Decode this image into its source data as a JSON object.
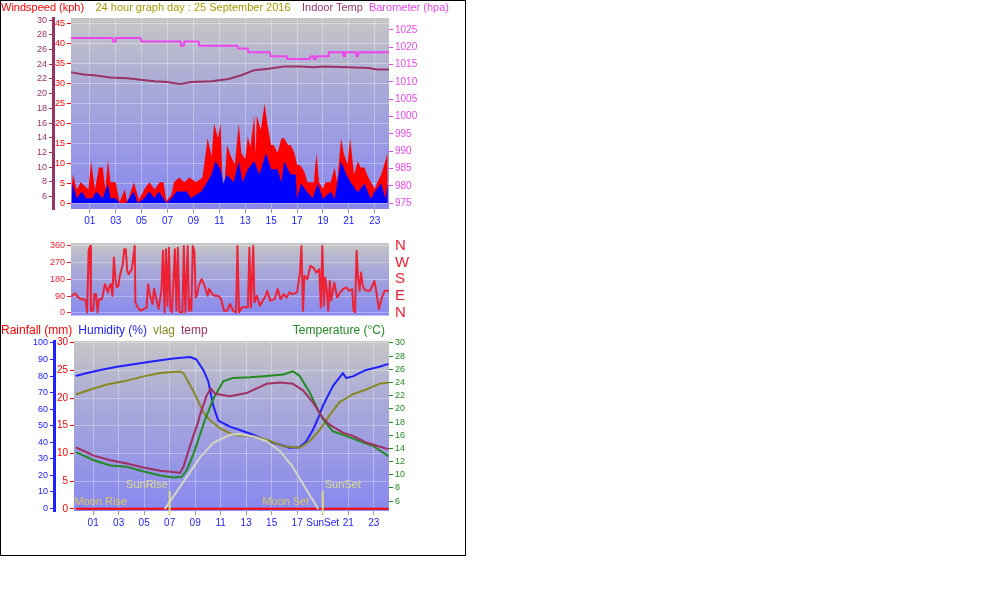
{
  "chart_data": [
    {
      "type": "line",
      "title": "24 hour graph day : 25 September 2016",
      "ylabel": "Windspeed (kph)",
      "y2label": "Barometer (hpa)",
      "y3label": "Indoor Temp",
      "xlim": [
        -0.45,
        24.1
      ],
      "xticks": [
        {
          "value": 1,
          "label": "01"
        },
        {
          "value": 3,
          "label": "03"
        },
        {
          "value": 5,
          "label": "05"
        },
        {
          "value": 7,
          "label": "07"
        },
        {
          "value": 9,
          "label": "09"
        },
        {
          "value": 11,
          "label": "11"
        },
        {
          "value": 13,
          "label": "13"
        },
        {
          "value": 15,
          "label": "15"
        },
        {
          "value": 17,
          "label": "17"
        },
        {
          "value": 19,
          "label": "19"
        },
        {
          "value": 21,
          "label": "21"
        },
        {
          "value": 23,
          "label": "23"
        }
      ],
      "ylim": [
        -1.5,
        46.5
      ],
      "yticks": [
        0,
        5,
        10,
        15,
        20,
        25,
        30,
        35,
        40,
        45
      ],
      "y2lim": [
        973.3,
        1028.4
      ],
      "y2ticks": [
        975,
        980,
        985,
        990,
        995,
        1000,
        1005,
        1010,
        1015,
        1020,
        1025
      ],
      "y3lim": [
        4.3,
        30.3
      ],
      "y3ticks": [
        6,
        8,
        10,
        12,
        14,
        16,
        18,
        20,
        22,
        24,
        26,
        28,
        30
      ],
      "grid": true,
      "series": [
        {
          "type": "area",
          "color": "#ff0000",
          "x": [
            -0.4,
            -0.3,
            0,
            0.3,
            0.9,
            1.1,
            1.4,
            1.7,
            2.0,
            2.2,
            2.4,
            2.6,
            3.0,
            3.3,
            3.7,
            3.9,
            4.4,
            4.8,
            5.2,
            5.6,
            6.0,
            6.4,
            6.7,
            6.9,
            7.3,
            7.5,
            7.9,
            8.3,
            8.7,
            9.2,
            9.7,
            10.1,
            10.4,
            10.6,
            10.9,
            11.1,
            11.3,
            11.6,
            11.9,
            12.2,
            12.5,
            12.7,
            13.0,
            13.2,
            13.4,
            13.7,
            13.8,
            13.9,
            14.2,
            14.5,
            14.7,
            15.0,
            15.2,
            15.5,
            15.8,
            16.0,
            16.3,
            16.5,
            16.8,
            17.0,
            17.3,
            17.6,
            17.8,
            18.3,
            18.5,
            18.7,
            19.0,
            19.2,
            19.6,
            19.9,
            20.1,
            20.4,
            20.6,
            20.9,
            21.1,
            21.4,
            21.7,
            21.9,
            22.2,
            22.4,
            22.7,
            23.0,
            23.2,
            23.5,
            23.7,
            24.0
          ],
          "values": [
            3.4,
            7.2,
            3.4,
            5.2,
            3.4,
            10.5,
            3.4,
            8.9,
            8.9,
            3.4,
            10.8,
            5.2,
            5.2,
            0.2,
            3.4,
            0.2,
            5.2,
            0.8,
            3.4,
            5.2,
            3.4,
            5.2,
            5.2,
            0.5,
            2.0,
            5.2,
            6.4,
            5.2,
            6.4,
            5.2,
            6.4,
            16.3,
            11.7,
            20,
            16.3,
            20,
            0,
            14.6,
            11.7,
            9.7,
            20,
            12.6,
            11.0,
            16.7,
            14.0,
            22,
            12,
            22,
            18.3,
            25,
            20,
            14.6,
            14.6,
            12.6,
            16.3,
            16.3,
            14.6,
            14.6,
            12.6,
            9.7,
            9.3,
            7.6,
            5.2,
            5.2,
            12.6,
            5.2,
            3.6,
            5.2,
            5.2,
            8.9,
            5.2,
            16.3,
            12.6,
            9.7,
            16.3,
            7.2,
            10.5,
            8.9,
            8.9,
            7.2,
            5.2,
            3.6,
            5.2,
            7.2,
            9.3,
            12.6
          ]
        },
        {
          "type": "area",
          "color": "#0000ff",
          "x": [
            -0.4,
            -0.3,
            0,
            0.4,
            0.7,
            1.2,
            1.5,
            2.0,
            2.4,
            2.6,
            3.0,
            3.3,
            3.8,
            4.4,
            4.7,
            5.2,
            5.6,
            6.0,
            6.3,
            6.7,
            6.9,
            7.3,
            7.7,
            8.5,
            8.8,
            9.6,
            10.0,
            10.4,
            10.7,
            11.1,
            11.3,
            11.6,
            12.1,
            12.5,
            12.8,
            13.2,
            13.7,
            14.1,
            14.6,
            15.0,
            15.5,
            15.8,
            16.0,
            16.5,
            16.9,
            17.0,
            17.3,
            17.8,
            18.2,
            18.6,
            19.0,
            19.6,
            19.9,
            20.4,
            20.8,
            21.2,
            21.7,
            22.2,
            22.7,
            23.0,
            23.5,
            23.8,
            24.0
          ],
          "values": [
            1.2,
            4.9,
            1.2,
            2.9,
            1.2,
            1.2,
            2.9,
            1.2,
            4.9,
            1.2,
            1.2,
            0,
            0,
            2.9,
            0,
            1.2,
            2.9,
            1.2,
            2.9,
            1.2,
            0,
            1.2,
            2.9,
            2.9,
            1.2,
            2.9,
            4.9,
            7.2,
            10.5,
            8.5,
            4.9,
            7.2,
            5.2,
            10.5,
            5.2,
            8.5,
            10.5,
            7.2,
            12.6,
            8.5,
            8.5,
            5.2,
            10.5,
            7.2,
            7.2,
            1.1,
            4.9,
            2.7,
            1.2,
            4.9,
            1.1,
            2.9,
            1.1,
            10.5,
            7.2,
            4.9,
            2.7,
            4.9,
            1.1,
            2.9,
            4.9,
            1.2,
            4.9
          ]
        },
        {
          "color": "#ee44ee",
          "axis": "y2",
          "x": [
            -0.4,
            2.75,
            2.8,
            2.95,
            3.0,
            4.9,
            5.0,
            8.0,
            8.05,
            8.25,
            8.3,
            9.4,
            9.45,
            12.4,
            12.45,
            13.2,
            13.25,
            14.9,
            14.95,
            16.2,
            16.25,
            18.0,
            18.05,
            18.25,
            18.3,
            18.45,
            18.5,
            19.4,
            19.45,
            20.55,
            20.6,
            20.7,
            20.75,
            21.55,
            21.6,
            21.7,
            21.75,
            24.1
          ],
          "values": [
            1022.6,
            1022.6,
            1021.6,
            1021.6,
            1022.6,
            1022.6,
            1021.6,
            1021.6,
            1020.4,
            1020.4,
            1021.6,
            1021.6,
            1020.4,
            1020.4,
            1019.6,
            1019.6,
            1018.5,
            1018.5,
            1017.4,
            1017.4,
            1016.6,
            1016.6,
            1017.4,
            1017.4,
            1016.6,
            1016.6,
            1017.4,
            1017.4,
            1018.5,
            1018.5,
            1017.4,
            1017.4,
            1018.5,
            1018.5,
            1017.4,
            1017.4,
            1018.5,
            1018.5
          ]
        },
        {
          "color": "#993366",
          "axis": "y3",
          "x": [
            -0.4,
            0.5,
            1.3,
            2.6,
            3.9,
            4.9,
            6.0,
            7.0,
            8.0,
            8.8,
            10.4,
            11.7,
            12.7,
            13.7,
            14.8,
            16.0,
            17.3,
            18.3,
            19.1,
            20.9,
            22.5,
            23.2,
            24.1
          ],
          "values": [
            22.9,
            22.6,
            22.5,
            22.2,
            22.1,
            21.9,
            21.7,
            21.6,
            21.3,
            21.6,
            21.7,
            22.0,
            22.5,
            23.2,
            23.4,
            23.7,
            23.7,
            23.6,
            23.7,
            23.6,
            23.5,
            23.3,
            23.3
          ]
        }
      ]
    },
    {
      "type": "line",
      "xlim": [
        -0.45,
        24.1
      ],
      "tick_labels": "y",
      "ylim": [
        -14,
        374
      ],
      "yticks": [
        0,
        90,
        180,
        270,
        360
      ],
      "grid": true,
      "annotations": [
        "N",
        "W",
        "S",
        "E",
        "N"
      ],
      "series": [
        {
          "color": "#ee2233",
          "x": [
            -0.36,
            -0.13,
            0.1,
            0.33,
            0.56,
            0.68,
            0.79,
            0.91,
            1.02,
            1.09,
            1.25,
            1.37,
            1.48,
            1.6,
            1.71,
            1.94,
            2.17,
            2.4,
            2.52,
            2.63,
            2.75,
            2.86,
            2.98,
            3.09,
            3.21,
            3.32,
            3.55,
            3.66,
            3.78,
            3.89,
            4.01,
            4.24,
            4.47,
            4.52,
            4.7,
            4.93,
            5.16,
            5.39,
            5.5,
            5.62,
            5.85,
            5.96,
            6.08,
            6.31,
            6.54,
            6.65,
            6.77,
            6.88,
            7.0,
            7.11,
            7.23,
            7.34,
            7.57,
            7.69,
            7.8,
            7.92,
            8.15,
            8.26,
            8.38,
            8.56,
            8.65,
            8.72,
            8.84,
            8.95,
            9.07,
            9.18,
            9.3,
            9.41,
            9.64,
            9.87,
            10.1,
            10.22,
            10.45,
            10.68,
            10.91,
            11.14,
            11.37,
            11.6,
            11.83,
            12.06,
            12.29,
            12.4,
            12.52,
            12.75,
            12.98,
            13.21,
            13.32,
            13.44,
            13.62,
            13.71,
            13.9,
            14.13,
            14.36,
            14.58,
            14.7,
            14.93,
            15.27,
            15.5,
            15.73,
            15.96,
            16.19,
            16.42,
            16.65,
            17.0,
            17.23,
            17.34,
            17.46,
            17.57,
            17.8,
            18.03,
            18.26,
            18.49,
            18.72,
            18.84,
            18.95,
            19.07,
            19.18,
            19.3,
            19.41,
            19.53,
            19.64,
            19.87,
            20.1,
            20.33,
            20.56,
            20.79,
            21.02,
            21.25,
            21.37,
            21.48,
            21.6,
            21.71,
            21.83,
            21.94,
            22.06,
            22.17,
            22.4,
            22.63,
            22.98,
            23.21,
            23.32,
            23.55,
            23.78,
            24.1
          ],
          "values": [
            92,
            105,
            83,
            74,
            74,
            66,
            4,
            332,
            358,
            12,
            12,
            101,
            101,
            4,
            74,
            74,
            154,
            110,
            145,
            154,
            92,
            296,
            181,
            137,
            145,
            199,
            261,
            340,
            340,
            225,
            207,
            234,
            358,
            57,
            30,
            12,
            21,
            30,
            154,
            101,
            48,
            128,
            92,
            21,
            128,
            332,
            4,
            340,
            39,
            349,
            12,
            4,
            340,
            12,
            349,
            4,
            4,
            358,
            4,
            358,
            12,
            74,
            12,
            358,
            332,
            83,
            101,
            145,
            181,
            145,
            92,
            128,
            101,
            92,
            92,
            74,
            12,
            12,
            48,
            12,
            4,
            358,
            4,
            30,
            30,
            30,
            349,
            30,
            358,
            57,
            92,
            39,
            66,
            92,
            119,
            66,
            74,
            128,
            74,
            101,
            83,
            110,
            101,
            110,
            216,
            358,
            12,
            199,
            181,
            252,
            243,
            216,
            234,
            30,
            358,
            39,
            190,
            119,
            12,
            172,
            66,
            163,
            83,
            110,
            128,
            137,
            119,
            128,
            12,
            4,
            332,
            190,
            119,
            216,
            154,
            128,
            119,
            119,
            172,
            74,
            21,
            83,
            119,
            119
          ]
        }
      ]
    },
    {
      "type": "line",
      "ylabel": "Rainfall (mm)",
      "y2label": "Temperature (°C)",
      "y3label": "Humidity (%)",
      "legend": "top",
      "xlim": [
        -0.5,
        24.2
      ],
      "xticks": [
        {
          "value": 1,
          "label": "01"
        },
        {
          "value": 3,
          "label": "03"
        },
        {
          "value": 5,
          "label": "05"
        },
        {
          "value": 7,
          "label": "07"
        },
        {
          "value": 9,
          "label": "09"
        },
        {
          "value": 11,
          "label": "11"
        },
        {
          "value": 13,
          "label": "13"
        },
        {
          "value": 15,
          "label": "15"
        },
        {
          "value": 17,
          "label": "17"
        },
        {
          "value": 19,
          "label": "SunSet"
        },
        {
          "value": 21,
          "label": "21"
        },
        {
          "value": 23,
          "label": "23"
        }
      ],
      "ylim": [
        -0.4,
        30.3
      ],
      "yticks": [
        0,
        5,
        10,
        15,
        20,
        25,
        30
      ],
      "y2lim": [
        4.5,
        30.3
      ],
      "y2ticks": [
        6,
        8,
        10,
        12,
        14,
        16,
        18,
        20,
        22,
        24,
        26,
        28,
        30
      ],
      "y3lim": [
        -1.6,
        101.2
      ],
      "y3ticks": [
        0,
        10,
        20,
        30,
        40,
        50,
        60,
        70,
        80,
        90,
        100
      ],
      "grid": true,
      "ref_lines": [
        {
          "axis": "x",
          "value": 7.0,
          "label": "SunRise",
          "color": "#dcdc8c"
        },
        {
          "axis": "x",
          "value": 19.0,
          "label": "SunSet",
          "color": "#dcdc8c"
        }
      ],
      "annotations": [
        {
          "text": "Moon Rise",
          "x": 1.6,
          "y": 0
        },
        {
          "text": "Moon Set",
          "x": 16.1,
          "y": 0
        }
      ],
      "series": [
        {
          "color": "#ff0000",
          "x": [
            -0.3,
            24.1
          ],
          "values": [
            0,
            0
          ]
        },
        {
          "color": "#2020ff",
          "axis": "y3",
          "x": [
            -0.3,
            0.53,
            1.57,
            2.87,
            4.17,
            6.0,
            7.3,
            8.6,
            9.1,
            9.64,
            10.03,
            10.42,
            10.8,
            10.95,
            11.47,
            11.73,
            12.5,
            13.55,
            14.6,
            15.63,
            16.4,
            17.2,
            17.72,
            18.23,
            18.63,
            19.02,
            19.8,
            20.58,
            20.84,
            21.36,
            22.4,
            23.45,
            24.1
          ],
          "values": [
            80.2,
            81.8,
            83.7,
            85.6,
            87.2,
            89.2,
            90.6,
            91.5,
            90,
            83.7,
            76.8,
            62.1,
            53.3,
            52.4,
            50.4,
            49.4,
            47.4,
            44.5,
            40.6,
            38.6,
            36.6,
            37.0,
            40.6,
            47.4,
            54.3,
            62.1,
            73.9,
            81.8,
            78.8,
            79.8,
            83.7,
            85.6,
            87.2
          ]
        },
        {
          "name": "vlag",
          "color": "#888822",
          "axis": "y3",
          "x": [
            -0.3,
            0.79,
            2.09,
            3.39,
            4.95,
            6.26,
            7.82,
            8.08,
            8.86,
            9.64,
            10.16,
            10.95,
            11.98,
            13.55,
            14.6,
            15.9,
            17.2,
            17.98,
            18.76,
            19.54,
            20.3,
            21.36,
            22.4,
            23.45,
            24.1
          ],
          "values": [
            69,
            71.9,
            74.9,
            76.8,
            79.8,
            81.8,
            82.7,
            81.8,
            70.9,
            58.2,
            53.3,
            48.4,
            44.5,
            43.5,
            41.5,
            37.6,
            36.6,
            40.6,
            47.4,
            56.2,
            64.1,
            69,
            71.9,
            75.3,
            75.9
          ]
        },
        {
          "color": "#d4d4c4",
          "axis": "y3",
          "x": [
            6.65,
            7.3,
            8.34,
            9.38,
            10.42,
            11.73,
            12.5,
            13.55,
            14.6,
            15.63,
            16.67,
            17.72,
            18.63
          ],
          "values": [
            0,
            7.2,
            19,
            30.8,
            39.6,
            44.5,
            44.9,
            43.5,
            40.6,
            34.7,
            24.9,
            11.2,
            0
          ]
        },
        {
          "color": "#228b22",
          "axis": "y2",
          "x": [
            -0.3,
            1.05,
            2.35,
            3.66,
            4.95,
            6.26,
            7.3,
            7.95,
            8.34,
            8.86,
            9.38,
            9.77,
            10.42,
            11.2,
            11.98,
            13.29,
            14.6,
            15.9,
            16.67,
            17.2,
            17.98,
            18.76,
            19.15,
            19.8,
            20.84,
            21.88,
            22.92,
            24.1
          ],
          "values": [
            13.4,
            12.2,
            11.4,
            11.2,
            10.5,
            9.9,
            9.6,
            9.7,
            10.7,
            13.1,
            16.1,
            18.3,
            21.5,
            24.2,
            24.7,
            24.8,
            25.0,
            25.2,
            25.7,
            25.0,
            22.5,
            19.3,
            18.1,
            16.6,
            15.9,
            15.1,
            14.4,
            12.9
          ]
        },
        {
          "name": "temp",
          "color": "#a03060",
          "axis": "y2",
          "x": [
            -0.3,
            1.05,
            2.35,
            3.66,
            4.95,
            6.26,
            7.82,
            8.08,
            8.47,
            8.86,
            9.25,
            9.38,
            9.9,
            10.21,
            10.55,
            11.72,
            13.03,
            14.6,
            15.63,
            16.67,
            17.46,
            18.23,
            19.02,
            19.54,
            20.58,
            21.36,
            22.4,
            24.1
          ],
          "values": [
            14.1,
            12.9,
            12.2,
            11.7,
            11.1,
            10.6,
            10.3,
            11.2,
            13.6,
            15.9,
            18.1,
            19.1,
            22.0,
            23.1,
            22.3,
            21.9,
            22.4,
            23.8,
            24.0,
            23.8,
            22.8,
            21.0,
            18.6,
            17.6,
            16.4,
            15.9,
            14.9,
            13.9
          ]
        }
      ]
    }
  ]
}
